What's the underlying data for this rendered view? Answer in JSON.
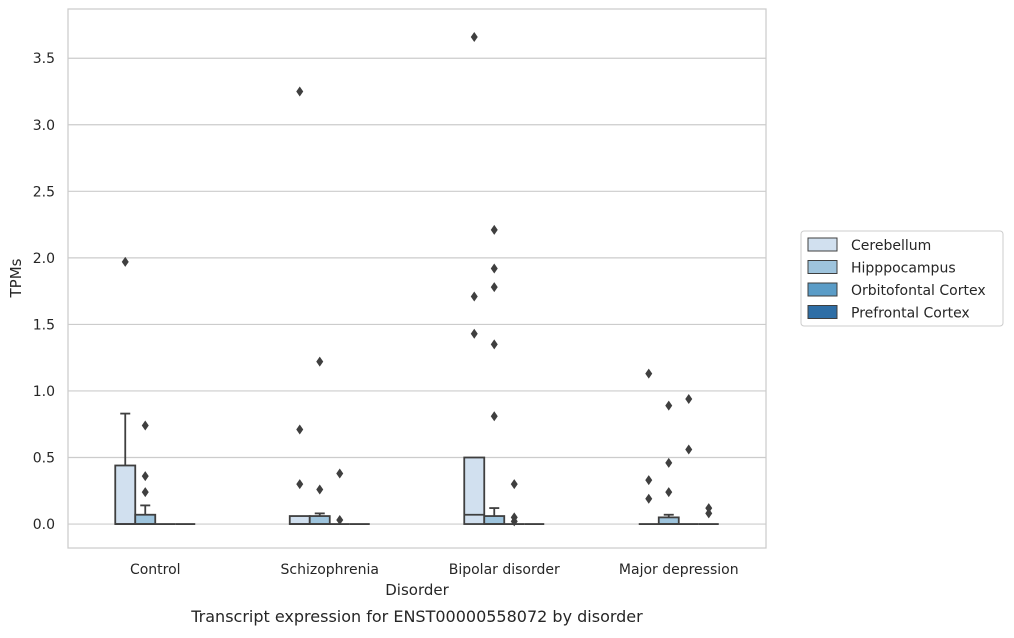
{
  "chart_data": {
    "type": "box",
    "caption": "Transcript expression for ENST00000558072 by disorder",
    "xlabel": "Disorder",
    "ylabel": "TPMs",
    "ylim": [
      -0.18,
      3.87
    ],
    "yticks": [
      "0.0",
      "0.5",
      "1.0",
      "1.5",
      "2.0",
      "2.5",
      "3.0",
      "3.5"
    ],
    "grid": "horizontal",
    "legend_position": "right",
    "categories": [
      "Control",
      "Schizophrenia",
      "Bipolar disorder",
      "Major depression"
    ],
    "series": [
      {
        "name": "Cerebellum",
        "color": "#d1e0ef",
        "boxes": [
          {
            "q1": 0.0,
            "median": 0.0,
            "q3": 0.44,
            "whisker_low": 0.0,
            "whisker_high": 0.83,
            "outliers": [
              1.97
            ]
          },
          {
            "q1": 0.0,
            "median": 0.0,
            "q3": 0.06,
            "whisker_low": 0.0,
            "whisker_high": 0.06,
            "outliers": [
              0.3,
              0.71,
              3.25
            ]
          },
          {
            "q1": 0.0,
            "median": 0.07,
            "q3": 0.5,
            "whisker_low": 0.0,
            "whisker_high": 0.5,
            "outliers": [
              1.43,
              1.71,
              3.66
            ]
          },
          {
            "q1": 0.0,
            "median": 0.0,
            "q3": 0.0,
            "whisker_low": 0.0,
            "whisker_high": 0.0,
            "outliers": [
              0.19,
              0.33,
              1.13
            ]
          }
        ]
      },
      {
        "name": "Hipppocampus",
        "color": "#9ec4dd",
        "boxes": [
          {
            "q1": 0.0,
            "median": 0.0,
            "q3": 0.07,
            "whisker_low": 0.0,
            "whisker_high": 0.14,
            "outliers": [
              0.24,
              0.36,
              0.74
            ]
          },
          {
            "q1": 0.0,
            "median": 0.0,
            "q3": 0.06,
            "whisker_low": 0.0,
            "whisker_high": 0.08,
            "outliers": [
              0.26,
              1.22
            ]
          },
          {
            "q1": 0.0,
            "median": 0.0,
            "q3": 0.06,
            "whisker_low": 0.0,
            "whisker_high": 0.12,
            "outliers": [
              0.81,
              1.35,
              1.78,
              1.92,
              2.21
            ]
          },
          {
            "q1": 0.0,
            "median": 0.0,
            "q3": 0.05,
            "whisker_low": 0.0,
            "whisker_high": 0.07,
            "outliers": [
              0.24,
              0.46,
              0.89
            ]
          }
        ]
      },
      {
        "name": "Orbitofontal Cortex",
        "color": "#5a9cc7",
        "boxes": [
          {
            "q1": 0.0,
            "median": 0.0,
            "q3": 0.0,
            "whisker_low": 0.0,
            "whisker_high": 0.0,
            "outliers": []
          },
          {
            "q1": 0.0,
            "median": 0.0,
            "q3": 0.0,
            "whisker_low": 0.0,
            "whisker_high": 0.0,
            "outliers": [
              0.03,
              0.38
            ]
          },
          {
            "q1": 0.0,
            "median": 0.0,
            "q3": 0.0,
            "whisker_low": 0.0,
            "whisker_high": 0.0,
            "outliers": [
              0.02,
              0.05,
              0.3
            ]
          },
          {
            "q1": 0.0,
            "median": 0.0,
            "q3": 0.0,
            "whisker_low": 0.0,
            "whisker_high": 0.0,
            "outliers": [
              0.56,
              0.94
            ]
          }
        ]
      },
      {
        "name": "Prefrontal Cortex",
        "color": "#2e6ea6",
        "boxes": [
          {
            "q1": 0.0,
            "median": 0.0,
            "q3": 0.0,
            "whisker_low": 0.0,
            "whisker_high": 0.0,
            "outliers": []
          },
          {
            "q1": 0.0,
            "median": 0.0,
            "q3": 0.0,
            "whisker_low": 0.0,
            "whisker_high": 0.0,
            "outliers": []
          },
          {
            "q1": 0.0,
            "median": 0.0,
            "q3": 0.0,
            "whisker_low": 0.0,
            "whisker_high": 0.0,
            "outliers": []
          },
          {
            "q1": 0.0,
            "median": 0.0,
            "q3": 0.0,
            "whisker_low": 0.0,
            "whisker_high": 0.0,
            "outliers": [
              0.08,
              0.12
            ]
          }
        ]
      }
    ]
  }
}
